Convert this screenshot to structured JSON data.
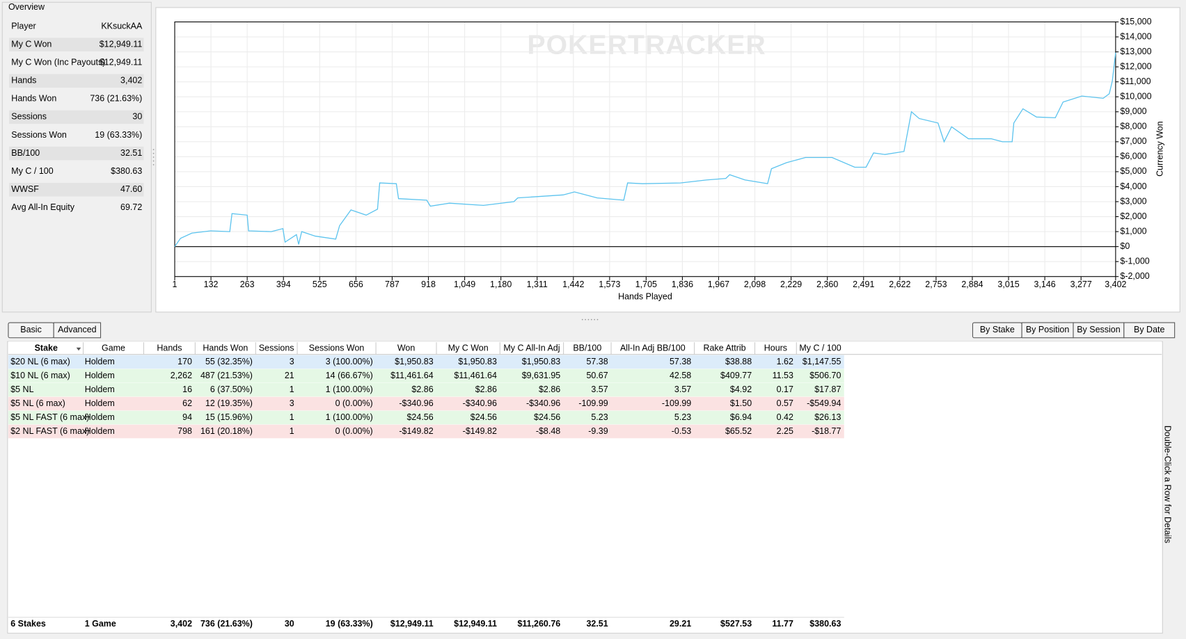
{
  "overview": {
    "title": "Overview",
    "rows": [
      [
        "Player",
        "KKsuckAA"
      ],
      [
        "My C Won",
        "$12,949.11"
      ],
      [
        "My C Won (Inc Payouts)",
        "$12,949.11"
      ],
      [
        "Hands",
        "3,402"
      ],
      [
        "Hands Won",
        "736 (21.63%)"
      ],
      [
        "Sessions",
        "30"
      ],
      [
        "Sessions Won",
        "19 (63.33%)"
      ],
      [
        "BB/100",
        "32.51"
      ],
      [
        "My C / 100",
        "$380.63"
      ],
      [
        "WWSF",
        "47.60"
      ],
      [
        "Avg All-In Equity",
        "69.72"
      ]
    ]
  },
  "chart_data": {
    "type": "line",
    "watermark": "POKERTRACKER",
    "x_label": "Hands Played",
    "y_label": "Currency Won",
    "xlim": [
      1,
      3402
    ],
    "ylim": [
      -2000,
      15000
    ],
    "xticks": [
      1,
      132,
      263,
      394,
      525,
      656,
      787,
      918,
      {
        "value": 1049,
        "label": "1,049"
      },
      {
        "value": 1180,
        "label": "1,180"
      },
      {
        "value": 1311,
        "label": "1,311"
      },
      {
        "value": 1442,
        "label": "1,442"
      },
      {
        "value": 1573,
        "label": "1,573"
      },
      {
        "value": 1705,
        "label": "1,705"
      },
      {
        "value": 1836,
        "label": "1,836"
      },
      {
        "value": 1967,
        "label": "1,967"
      },
      {
        "value": 2098,
        "label": "2,098"
      },
      {
        "value": 2229,
        "label": "2,229"
      },
      {
        "value": 2360,
        "label": "2,360"
      },
      {
        "value": 2491,
        "label": "2,491"
      },
      {
        "value": 2622,
        "label": "2,622"
      },
      {
        "value": 2753,
        "label": "2,753"
      },
      {
        "value": 2884,
        "label": "2,884"
      },
      {
        "value": 3015,
        "label": "3,015"
      },
      {
        "value": 3146,
        "label": "3,146"
      },
      {
        "value": 3277,
        "label": "3,277"
      },
      {
        "value": 3402,
        "label": "3,402"
      }
    ],
    "yticks": [
      {
        "value": -2000,
        "label": "$-2,000"
      },
      {
        "value": -1000,
        "label": "$-1,000"
      },
      {
        "value": 0,
        "label": "$0"
      },
      {
        "value": 1000,
        "label": "$1,000"
      },
      {
        "value": 2000,
        "label": "$2,000"
      },
      {
        "value": 3000,
        "label": "$3,000"
      },
      {
        "value": 4000,
        "label": "$4,000"
      },
      {
        "value": 5000,
        "label": "$5,000"
      },
      {
        "value": 6000,
        "label": "$6,000"
      },
      {
        "value": 7000,
        "label": "$7,000"
      },
      {
        "value": 8000,
        "label": "$8,000"
      },
      {
        "value": 9000,
        "label": "$9,000"
      },
      {
        "value": 10000,
        "label": "$10,000"
      },
      {
        "value": 11000,
        "label": "$11,000"
      },
      {
        "value": 12000,
        "label": "$12,000"
      },
      {
        "value": 13000,
        "label": "$13,000"
      },
      {
        "value": 14000,
        "label": "$14,000"
      },
      {
        "value": 15000,
        "label": "$15,000"
      }
    ],
    "grid": true,
    "series": [
      {
        "color": "#5bc3ee",
        "x": [
          1,
          22,
          63,
          131,
          200,
          208,
          263,
          268,
          350,
          392,
          400,
          441,
          449,
          460,
          509,
          583,
          597,
          638,
          693,
          734,
          742,
          802,
          810,
          912,
          925,
          994,
          1117,
          1227,
          1241,
          1405,
          1446,
          1528,
          1624,
          1638,
          1692,
          1829,
          1925,
          1993,
          2007,
          2062,
          2144,
          2158,
          2212,
          2281,
          2377,
          2459,
          2500,
          2527,
          2568,
          2637,
          2664,
          2692,
          2760,
          2782,
          2809,
          2870,
          2952,
          2993,
          3028,
          3034,
          3067,
          3116,
          3184,
          3212,
          3280,
          3357,
          3379,
          3390,
          3402
        ],
        "values": [
          0,
          550,
          900,
          1050,
          1000,
          2200,
          2100,
          1050,
          1000,
          1200,
          300,
          800,
          150,
          1000,
          700,
          500,
          1400,
          2450,
          2100,
          2500,
          4250,
          4200,
          3200,
          3100,
          2700,
          2900,
          2750,
          3000,
          3250,
          3450,
          3650,
          3250,
          3100,
          4250,
          4200,
          4250,
          4450,
          4550,
          4800,
          4450,
          4200,
          5200,
          5600,
          5950,
          5950,
          5300,
          5300,
          6250,
          6150,
          6350,
          9000,
          8550,
          8250,
          7000,
          8000,
          7200,
          7200,
          7000,
          7000,
          8250,
          9200,
          8650,
          8600,
          9650,
          10050,
          9900,
          10200,
          11050,
          12949
        ]
      }
    ]
  },
  "tabs": [
    "Basic",
    "Advanced"
  ],
  "views": [
    "By Stake",
    "By Position",
    "By Session",
    "By Date"
  ],
  "table": {
    "columns": [
      "Stake",
      "Game",
      "Hands",
      "Hands Won",
      "Sessions",
      "Sessions Won",
      "Won",
      "My C Won",
      "My C All-In Adj",
      "BB/100",
      "All-In Adj BB/100",
      "Rake Attrib",
      "Hours",
      "My C / 100"
    ],
    "rows": [
      [
        "$20 NL (6 max)",
        "Holdem",
        "170",
        "55 (32.35%)",
        "3",
        "3 (100.00%)",
        "$1,950.83",
        "$1,950.83",
        "$1,950.83",
        "57.38",
        "57.38",
        "$38.88",
        "1.62",
        "$1,147.55"
      ],
      [
        "$10 NL (6 max)",
        "Holdem",
        "2,262",
        "487 (21.53%)",
        "21",
        "14 (66.67%)",
        "$11,461.64",
        "$11,461.64",
        "$9,631.95",
        "50.67",
        "42.58",
        "$409.77",
        "11.53",
        "$506.70"
      ],
      [
        "$5 NL",
        "Holdem",
        "16",
        "6 (37.50%)",
        "1",
        "1 (100.00%)",
        "$2.86",
        "$2.86",
        "$2.86",
        "3.57",
        "3.57",
        "$4.92",
        "0.17",
        "$17.87"
      ],
      [
        "$5 NL (6 max)",
        "Holdem",
        "62",
        "12 (19.35%)",
        "3",
        "0 (0.00%)",
        "-$340.96",
        "-$340.96",
        "-$340.96",
        "-109.99",
        "-109.99",
        "$1.50",
        "0.57",
        "-$549.94"
      ],
      [
        "$5 NL FAST (6 max)",
        "Holdem",
        "94",
        "15 (15.96%)",
        "1",
        "1 (100.00%)",
        "$24.56",
        "$24.56",
        "$24.56",
        "5.23",
        "5.23",
        "$6.94",
        "0.42",
        "$26.13"
      ],
      [
        "$2 NL FAST (6 max)",
        "Holdem",
        "798",
        "161 (20.18%)",
        "1",
        "0 (0.00%)",
        "-$149.82",
        "-$149.82",
        "-$8.48",
        "-9.39",
        "-0.53",
        "$65.52",
        "2.25",
        "-$18.77"
      ]
    ],
    "totals": [
      "6 Stakes",
      "1 Game",
      "3,402",
      "736 (21.63%)",
      "30",
      "19 (63.33%)",
      "$12,949.11",
      "$12,949.11",
      "$11,260.76",
      "32.51",
      "29.21",
      "$527.53",
      "11.77",
      "$380.63"
    ]
  },
  "side_note": "Double-Click a Row for Details"
}
